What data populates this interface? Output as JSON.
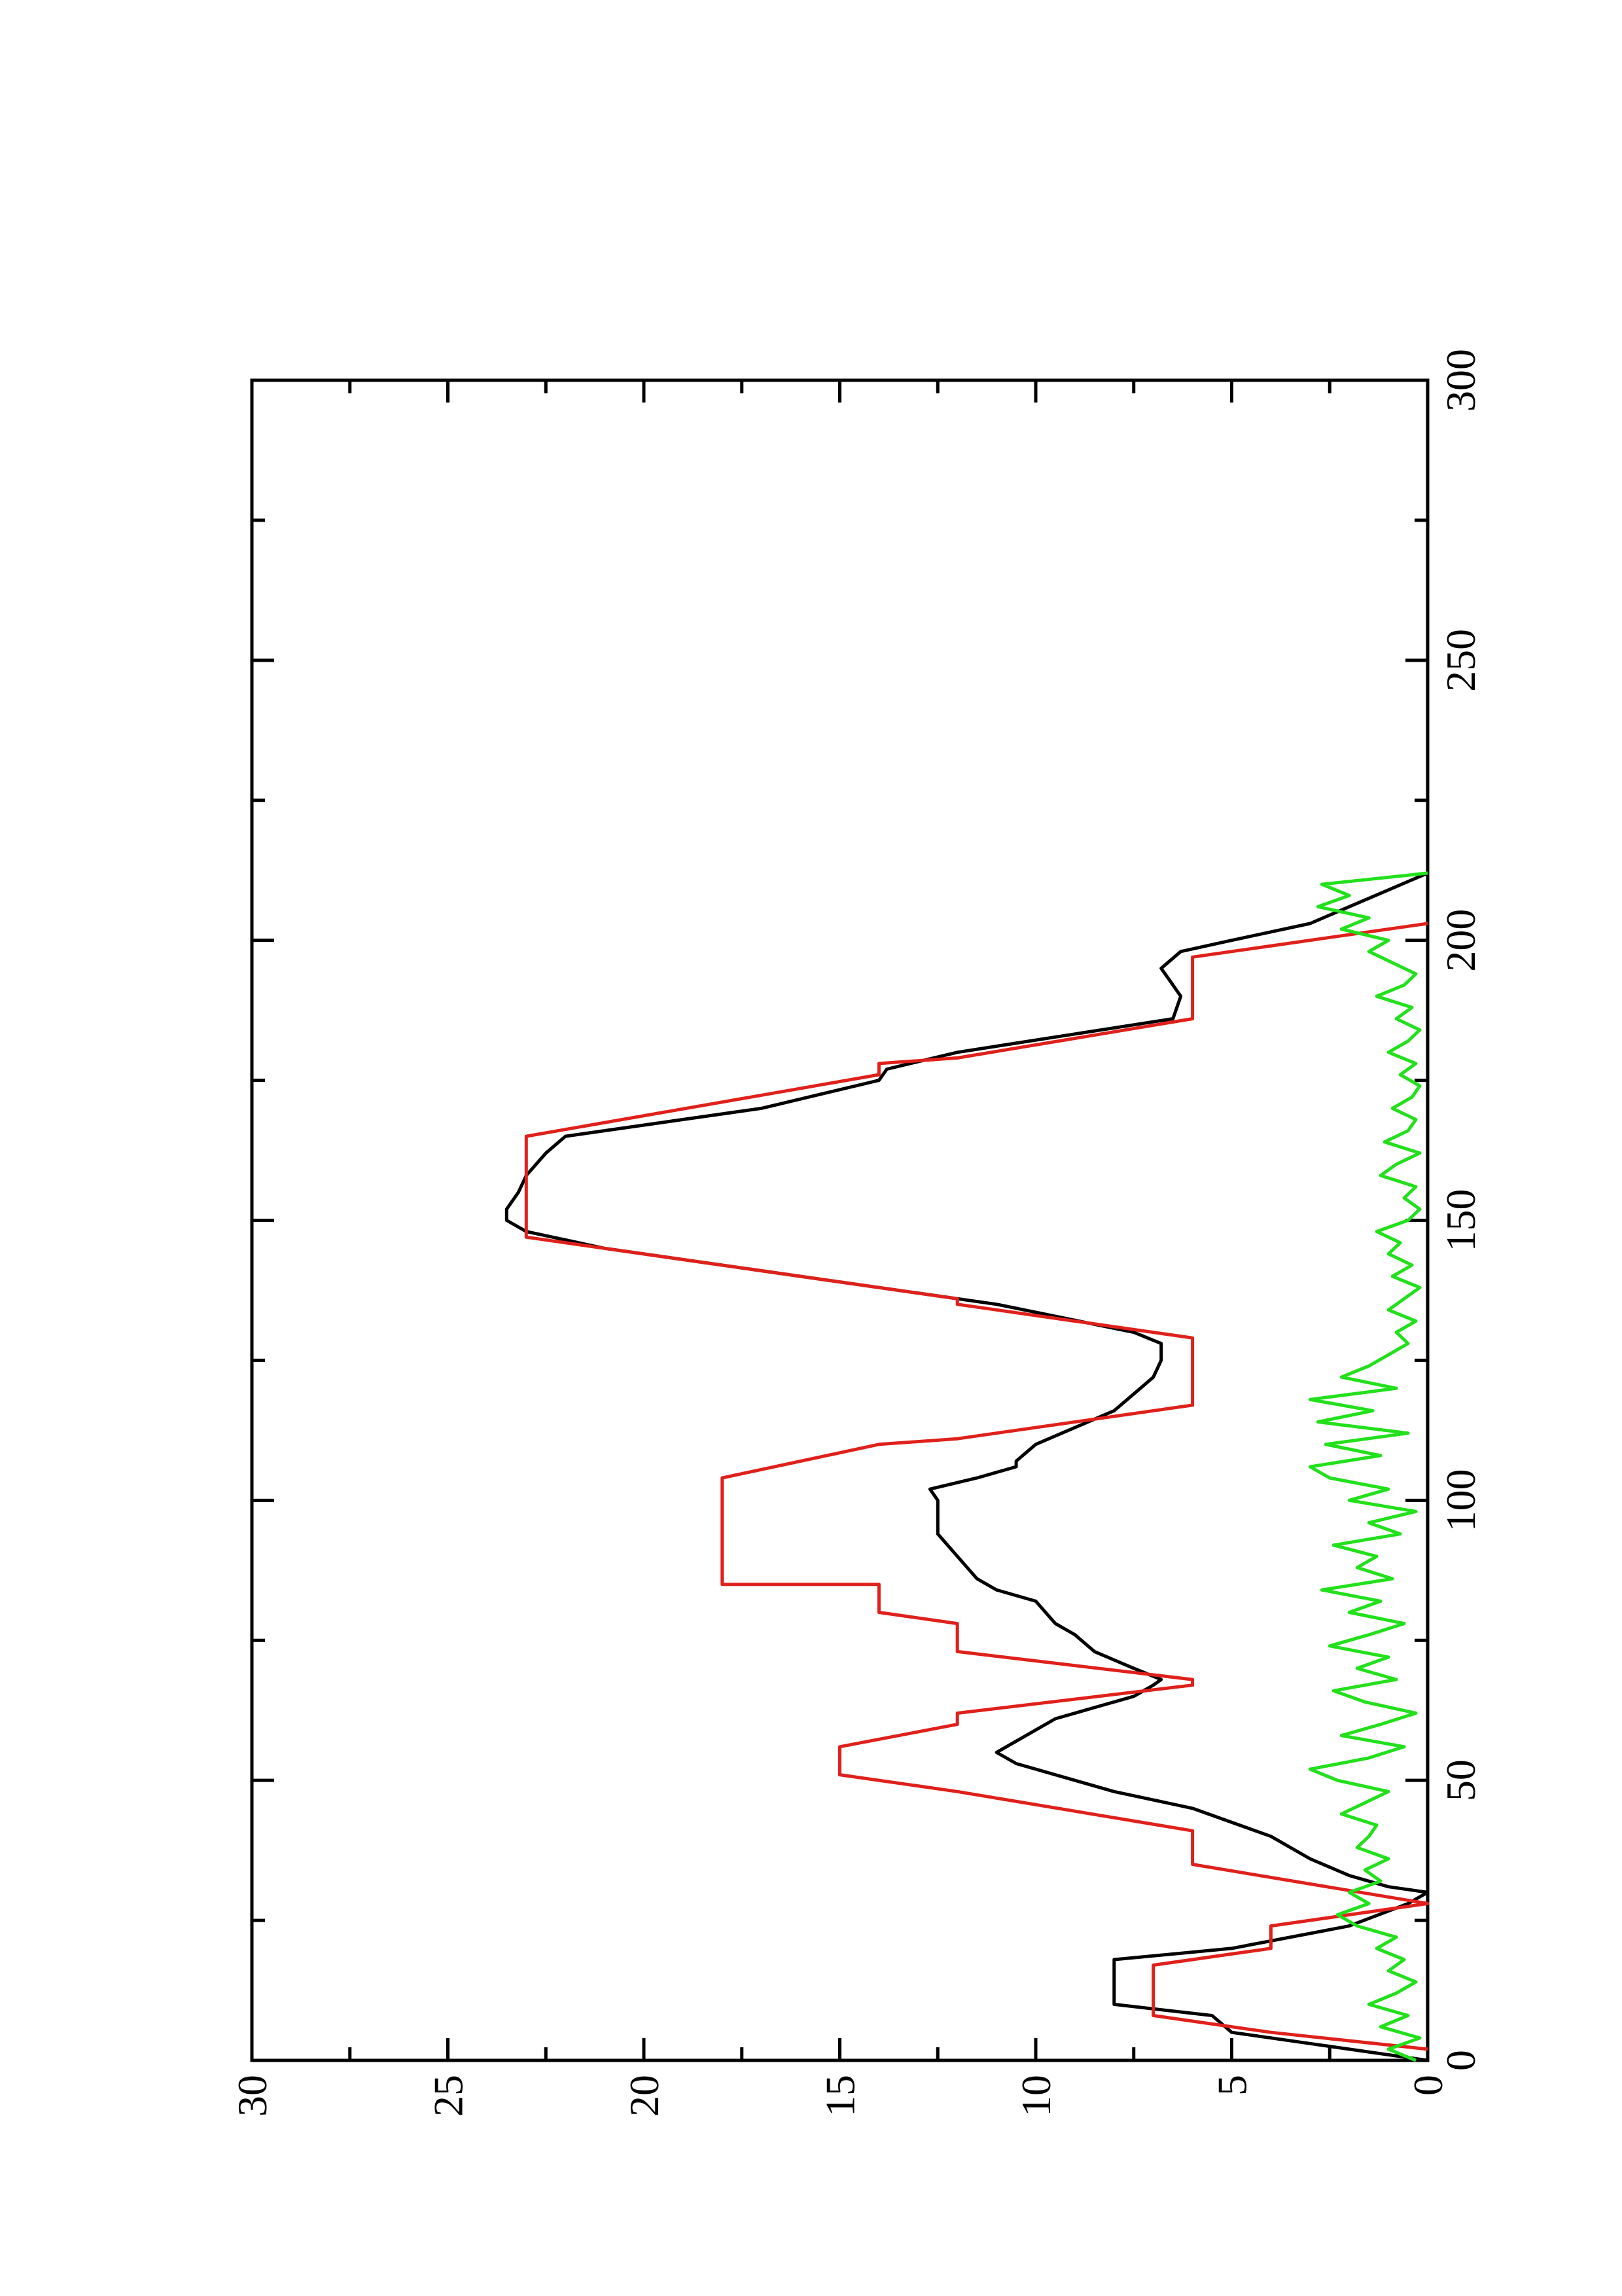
{
  "chart_data": {
    "type": "line",
    "xlim": [
      0,
      300
    ],
    "xticks": [
      0,
      50,
      100,
      150,
      200,
      250,
      300
    ],
    "xminorticks": [
      25,
      75,
      125,
      175,
      225,
      275
    ],
    "ylim": [
      0,
      30
    ],
    "yticks": [
      0,
      5,
      10,
      15,
      20,
      25,
      30
    ],
    "yminorticks": [
      2.5,
      7.5,
      12.5,
      17.5,
      22.5,
      27.5
    ],
    "rotation": -90,
    "series": [
      {
        "color": "#000000",
        "x": [
          0,
          3,
          5,
          8,
          10,
          18,
          20,
          24,
          28,
          30,
          31,
          33,
          36,
          40,
          45,
          48,
          50,
          53,
          55,
          57,
          59,
          61,
          63,
          65,
          67,
          68,
          70,
          73,
          76,
          78,
          82,
          84,
          86,
          90,
          94,
          100,
          102,
          104,
          106,
          107,
          110,
          113,
          116,
          119,
          122,
          125,
          128,
          130,
          135,
          140,
          145,
          148,
          150,
          152,
          155,
          158,
          162,
          165,
          170,
          175,
          177,
          180,
          186,
          190,
          192,
          195,
          198,
          200,
          203,
          206,
          209,
          212
        ],
        "values": [
          0,
          3,
          5,
          5.5,
          8,
          8,
          5,
          2,
          0.5,
          0,
          1,
          2,
          3,
          4,
          6,
          8,
          9,
          10.5,
          11,
          10.5,
          10,
          9.5,
          8.5,
          7.5,
          7,
          6.8,
          7.5,
          8.5,
          9,
          9.5,
          10,
          11,
          11.5,
          12,
          12.5,
          12.5,
          12.7,
          11.5,
          10.5,
          10.5,
          10,
          9,
          8,
          7.5,
          7,
          6.8,
          6.8,
          7.5,
          11,
          16,
          21,
          23,
          23.5,
          23.5,
          23.2,
          23,
          22.5,
          22,
          17,
          14,
          13.8,
          12,
          6.5,
          6.3,
          6.5,
          6.8,
          6.3,
          5,
          3,
          2,
          1,
          0
        ]
      },
      {
        "color": "#e0201b",
        "x": [
          2,
          5,
          8,
          17,
          20,
          24,
          28,
          35,
          41,
          48,
          51,
          56,
          60,
          62,
          67,
          68,
          73,
          78,
          80,
          85,
          85,
          104,
          110,
          111,
          117,
          129,
          135,
          136,
          147,
          165,
          176,
          178,
          179,
          186,
          197,
          203
        ],
        "values": [
          0,
          4,
          7,
          7,
          4,
          4,
          0,
          6,
          6,
          12,
          15,
          15,
          12,
          12,
          6,
          6,
          12,
          12,
          14,
          14,
          18,
          18,
          14,
          12,
          6,
          6,
          12,
          12,
          23,
          23,
          14,
          14,
          12,
          6,
          6,
          0
        ]
      },
      {
        "color": "#22e01b",
        "x": [
          0,
          2,
          4,
          6,
          8,
          10,
          12,
          14,
          16,
          18,
          20,
          22,
          24,
          26,
          28,
          30,
          32,
          34,
          36,
          38,
          40,
          42,
          44,
          46,
          48,
          50,
          52,
          54,
          56,
          58,
          60,
          62,
          64,
          66,
          68,
          70,
          72,
          74,
          76,
          78,
          80,
          82,
          84,
          86,
          88,
          90,
          92,
          94,
          96,
          98,
          100,
          102,
          104,
          106,
          108,
          110,
          112,
          114,
          116,
          118,
          120,
          122,
          124,
          126,
          128,
          130,
          132,
          134,
          136,
          138,
          140,
          142,
          144,
          146,
          148,
          150,
          152,
          154,
          156,
          158,
          160,
          162,
          164,
          166,
          168,
          170,
          172,
          174,
          176,
          178,
          180,
          182,
          184,
          186,
          188,
          190,
          192,
          194,
          196,
          198,
          200,
          202,
          204,
          206,
          208,
          210,
          212
        ],
        "values": [
          0.3,
          1.0,
          0.2,
          1.2,
          0.5,
          1.5,
          0.8,
          0.3,
          1.0,
          0.6,
          1.3,
          0.8,
          1.8,
          2.3,
          1.5,
          2.0,
          1.2,
          1.6,
          1.0,
          1.8,
          1.5,
          1.3,
          2.2,
          1.6,
          1.0,
          2.3,
          3.0,
          1.5,
          0.6,
          2.2,
          1.2,
          0.3,
          1.6,
          2.4,
          0.8,
          1.8,
          1.0,
          2.5,
          1.5,
          0.6,
          2.0,
          1.2,
          2.7,
          0.9,
          1.8,
          1.3,
          2.4,
          0.7,
          1.5,
          0.3,
          2.0,
          1.0,
          2.5,
          3.0,
          1.2,
          2.6,
          0.5,
          2.8,
          1.4,
          3.0,
          0.8,
          2.2,
          1.5,
          1.0,
          0.5,
          0.8,
          0.3,
          1.0,
          0.6,
          0.2,
          0.9,
          0.4,
          1.0,
          0.7,
          1.3,
          0.5,
          0.2,
          0.6,
          0.3,
          1.2,
          0.8,
          0.2,
          1.1,
          0.5,
          0.3,
          0.9,
          0.4,
          0.2,
          0.7,
          0.3,
          1.0,
          0.5,
          0.2,
          0.8,
          0.4,
          1.3,
          0.6,
          0.3,
          0.9,
          1.5,
          1.0,
          2.2,
          1.5,
          2.8,
          2.0,
          2.7,
          0.0
        ]
      }
    ]
  }
}
